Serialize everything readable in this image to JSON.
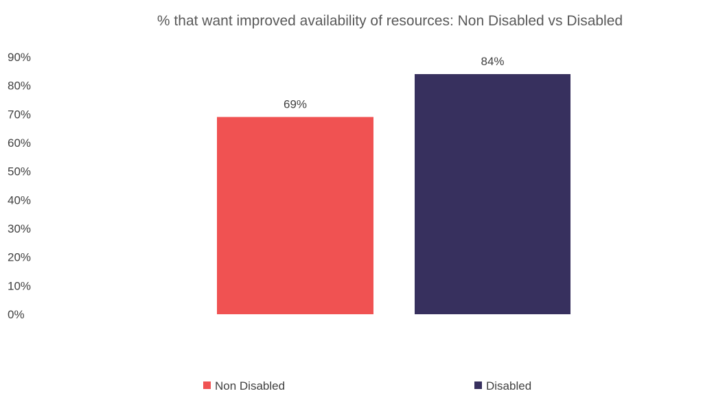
{
  "chart_data": {
    "type": "bar",
    "title": "% that want improved availability of resources: Non Disabled vs Disabled",
    "categories": [
      "Non Disabled",
      "Disabled"
    ],
    "values": [
      69,
      84
    ],
    "value_labels": [
      "69%",
      "84%"
    ],
    "colors": [
      "#f05252",
      "#37305e"
    ],
    "ylim": [
      0,
      90
    ],
    "ytick_values": [
      0,
      10,
      20,
      30,
      40,
      50,
      60,
      70,
      80,
      90
    ],
    "ytick_labels": [
      "0%",
      "10%",
      "20%",
      "30%",
      "40%",
      "50%",
      "60%",
      "70%",
      "80%",
      "90%"
    ],
    "grid": false,
    "x_tick_labels_shown": false,
    "legend": {
      "position": "bottom",
      "entries": [
        "Non Disabled",
        "Disabled"
      ]
    }
  }
}
